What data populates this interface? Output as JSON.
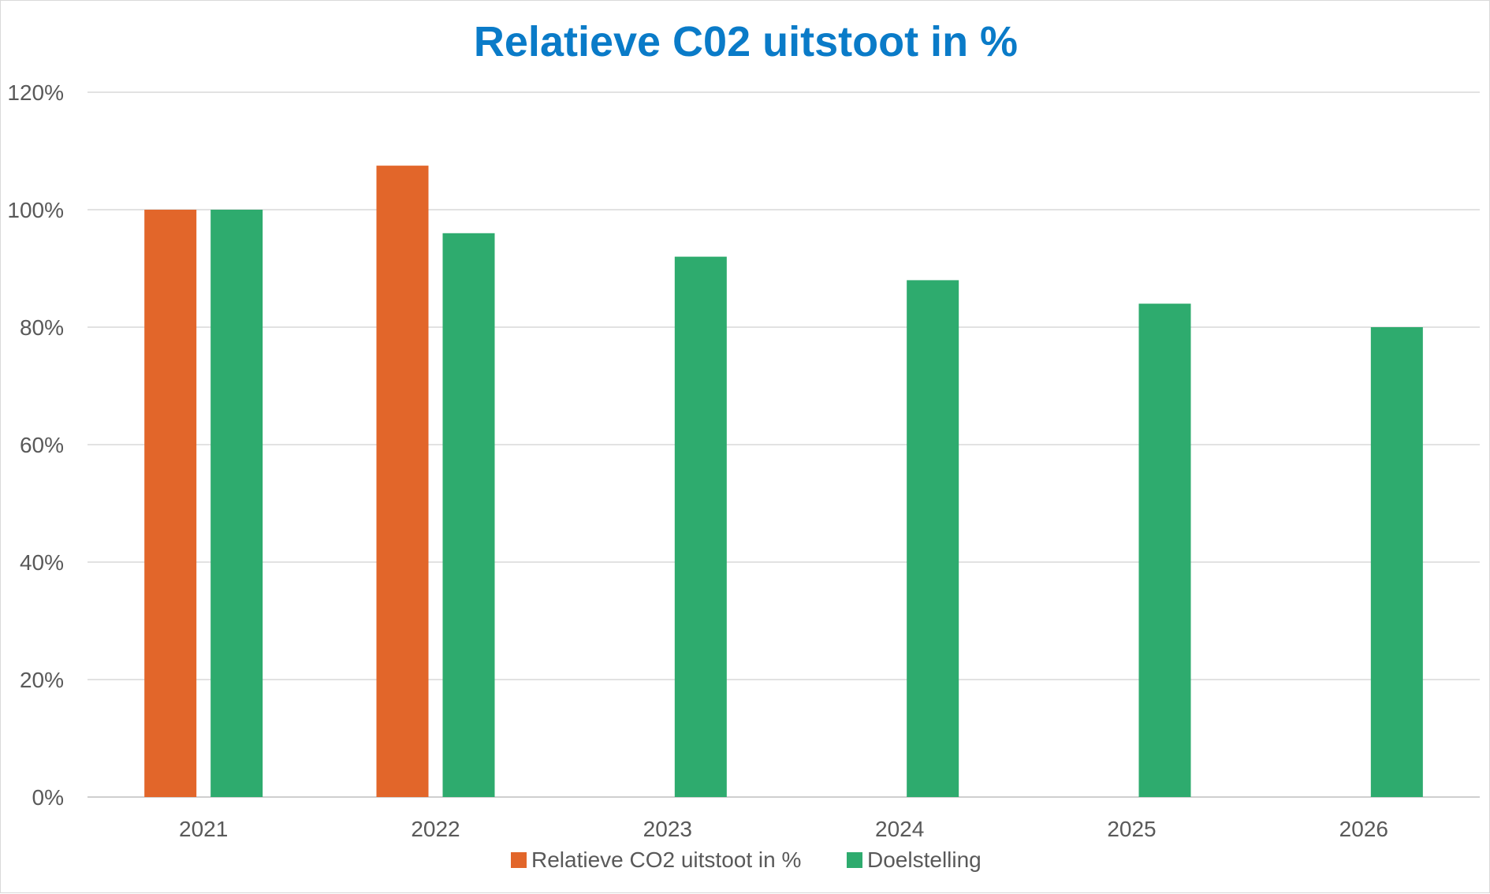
{
  "chart_data": {
    "type": "bar",
    "title": "Relatieve C02 uitstoot in %",
    "xlabel": "",
    "ylabel": "",
    "categories": [
      "2021",
      "2022",
      "2023",
      "2024",
      "2025",
      "2026"
    ],
    "series": [
      {
        "name": "Relatieve CO2 uitstoot in %",
        "color": "#E2662A",
        "values": [
          100,
          107.5,
          null,
          null,
          null,
          null
        ]
      },
      {
        "name": "Doelstelling",
        "color": "#2EAB6E",
        "values": [
          100,
          96,
          92,
          88,
          84,
          80
        ]
      }
    ],
    "ylim": [
      0,
      120
    ],
    "yticks": [
      0,
      20,
      40,
      60,
      80,
      100,
      120
    ],
    "ytick_labels": [
      "0%",
      "20%",
      "40%",
      "60%",
      "80%",
      "100%",
      "120%"
    ],
    "grid": true,
    "legend": "bottom-center",
    "title_color": "#0A7BC8"
  }
}
